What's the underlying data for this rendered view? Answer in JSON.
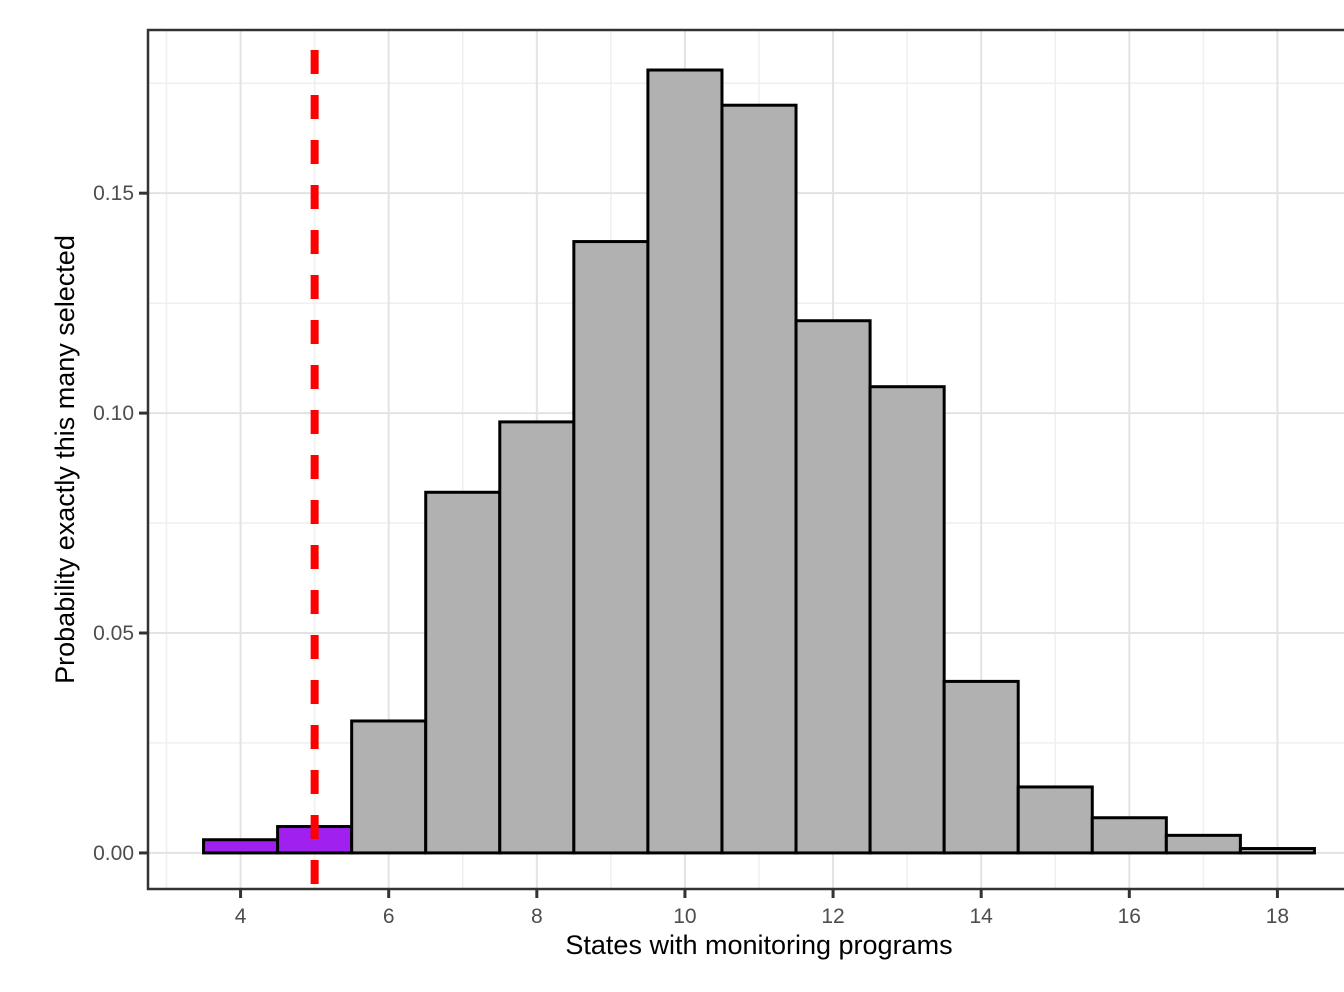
{
  "chart_data": {
    "type": "bar",
    "subtype": "histogram",
    "title": "",
    "xlabel": "States with monitoring programs",
    "ylabel": "Probability exactly this many selected",
    "categories": [
      4,
      5,
      6,
      7,
      8,
      9,
      10,
      11,
      12,
      13,
      14,
      15,
      16,
      17,
      18
    ],
    "values": [
      0.003,
      0.006,
      0.03,
      0.082,
      0.098,
      0.139,
      0.178,
      0.17,
      0.121,
      0.106,
      0.039,
      0.015,
      0.008,
      0.004,
      0.001
    ],
    "bar_width": 1,
    "bar_fill": "#b1b1b1",
    "bar_stroke": "#000000",
    "highlight": {
      "x": [
        4,
        5
      ],
      "fill": "#a020f0"
    },
    "vline": {
      "x": 5,
      "color": "#ff0000",
      "style": "dashed"
    },
    "x_ticks": [
      4,
      6,
      8,
      10,
      12,
      14,
      16,
      18
    ],
    "x_tick_labels": [
      "4",
      "6",
      "8",
      "10",
      "12",
      "14",
      "16",
      "18"
    ],
    "y_ticks": [
      0.0,
      0.05,
      0.1,
      0.15
    ],
    "y_tick_labels": [
      "0.00",
      "0.05",
      "0.10",
      "0.15"
    ],
    "x_minor": [
      3,
      5,
      7,
      9,
      11,
      13,
      15,
      17,
      19
    ],
    "y_minor": [
      0.025,
      0.075,
      0.125,
      0.175
    ],
    "xlim": [
      2.75,
      19.25
    ],
    "ylim": [
      -0.0082,
      0.1871
    ],
    "grid": "on",
    "legend": "none",
    "panel_background": "#ffffff",
    "panel_border_color": "#333333",
    "grid_major_color": "#e3e3e3",
    "grid_minor_color": "#f0f0f0",
    "tick_color": "#333333",
    "tick_label_color": "#4d4d4d",
    "title_color": "#000000"
  }
}
